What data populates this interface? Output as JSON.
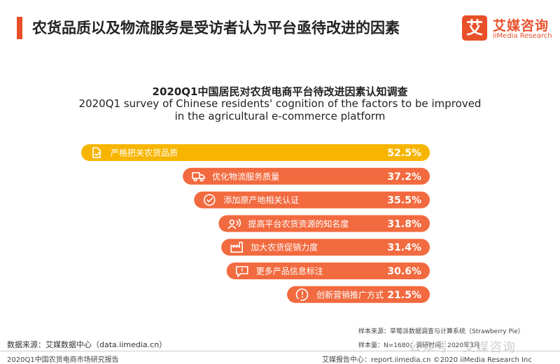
{
  "header": {
    "title": "农货品质以及物流服务是受访者认为平台亟待改进的因素",
    "logo_mark": "艾",
    "logo_cn": "艾媒咨询",
    "logo_en": "iiMedia Research"
  },
  "chart_data": {
    "type": "bar",
    "orientation": "horizontal",
    "title": "2020Q1中国居民对农货电商平台待改进因素认知调查",
    "subtitle_line1": "2020Q1 survey of Chinese residents' cognition of the factors to be improved",
    "subtitle_line2": "in the agricultural e-commerce platform",
    "unit": "%",
    "categories": [
      "严格把关农货品质",
      "优化物流服务质量",
      "添加原产地相关认证",
      "提高平台农货资源的知名度",
      "加大农货促销力度",
      "更多产品信息标注",
      "创新营销推广方式"
    ],
    "values": [
      52.5,
      37.2,
      35.5,
      31.8,
      31.4,
      30.6,
      21.5
    ],
    "value_labels": [
      "52.5%",
      "37.2%",
      "35.5%",
      "31.8%",
      "31.4%",
      "30.6%",
      "21.5%"
    ],
    "icons": [
      "document-check-icon",
      "truck-icon",
      "check-circle-icon",
      "person-broadcast-icon",
      "factory-icon",
      "message-icon",
      "exclamation-icon"
    ],
    "colors": [
      "#f7b500",
      "#f26a3f",
      "#f26a3f",
      "#f26a3f",
      "#f26a3f",
      "#f26a3f",
      "#f26a3f"
    ],
    "label_color": "#ffffff"
  },
  "footer": {
    "data_source": "数据来源：艾媒数据中心（data.iimedia.cn）",
    "sample_source": "样本来源：草莓派数据调查与计算系统（Strawberry Pie）",
    "sample_size": "样本量：N=1680；调研时间：2020年3月",
    "report_name": "2020Q1中国农货电商市场研究报告",
    "report_center": "艾媒报告中心：report.iimedia.cn  ©2020  iiMedia Research Inc",
    "watermark": "公众号 · 艾媒咨询"
  }
}
